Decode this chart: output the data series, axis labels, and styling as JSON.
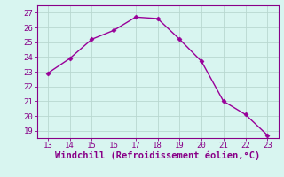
{
  "x": [
    13,
    14,
    15,
    16,
    17,
    18,
    19,
    20,
    21,
    22,
    23
  ],
  "y": [
    22.9,
    23.9,
    25.2,
    25.8,
    26.7,
    26.6,
    25.2,
    23.7,
    21.0,
    20.1,
    18.7
  ],
  "xlim": [
    12.5,
    23.5
  ],
  "ylim": [
    18.5,
    27.5
  ],
  "xticks": [
    13,
    14,
    15,
    16,
    17,
    18,
    19,
    20,
    21,
    22,
    23
  ],
  "yticks": [
    19,
    20,
    21,
    22,
    23,
    24,
    25,
    26,
    27
  ],
  "xlabel": "Windchill (Refroidissement éolien,°C)",
  "line_color": "#990099",
  "marker": "D",
  "marker_size": 2.5,
  "background_color": "#d8f5f0",
  "grid_color": "#b8d8d0",
  "tick_color": "#880088",
  "label_color": "#880088",
  "tick_fontsize": 6.5,
  "xlabel_fontsize": 7.5
}
